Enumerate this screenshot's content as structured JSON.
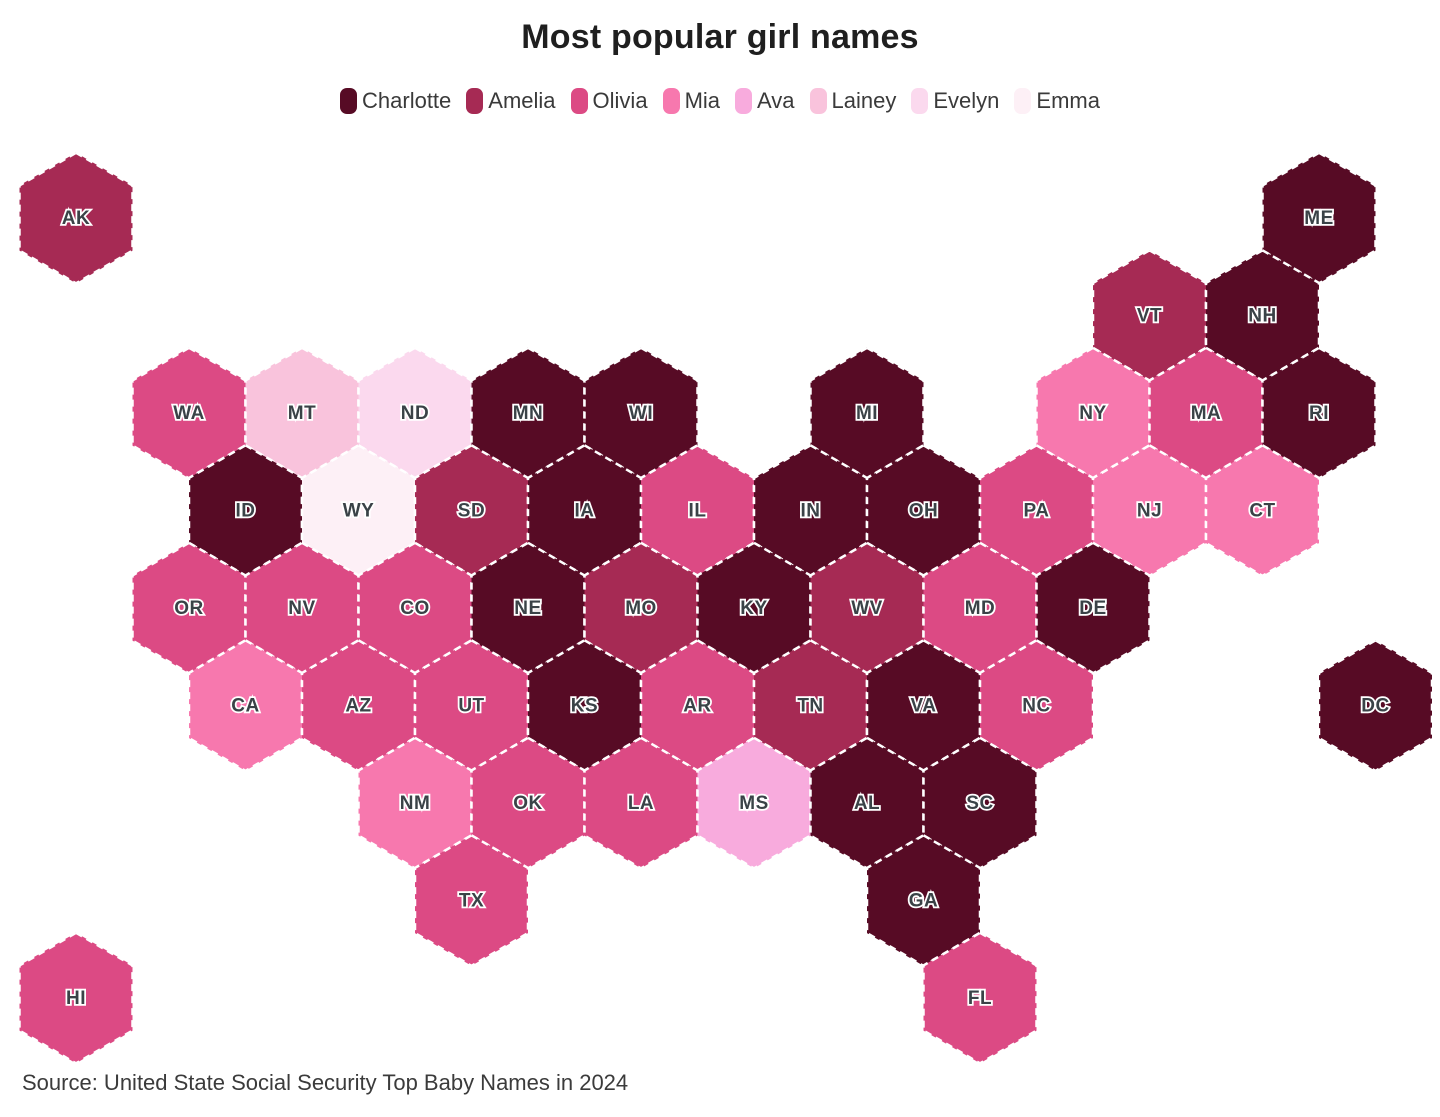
{
  "title": "Most popular girl names",
  "source": "Source: United State Social Security Top Baby Names in 2024",
  "legend": [
    {
      "label": "Charlotte",
      "color": "#570b25"
    },
    {
      "label": "Amelia",
      "color": "#a62a54"
    },
    {
      "label": "Olivia",
      "color": "#dc4a84"
    },
    {
      "label": "Mia",
      "color": "#f778ae"
    },
    {
      "label": "Ava",
      "color": "#f8abdd"
    },
    {
      "label": "Lainey",
      "color": "#f9c3dc"
    },
    {
      "label": "Evelyn",
      "color": "#fbd9ee"
    },
    {
      "label": "Emma",
      "color": "#fdf0f6"
    }
  ],
  "chart_data": {
    "type": "heatmap",
    "subtype": "us-hex-cartogram",
    "title": "Most popular girl names",
    "legend_position": "top",
    "categories": [
      "Charlotte",
      "Amelia",
      "Olivia",
      "Mia",
      "Ava",
      "Lainey",
      "Evelyn",
      "Emma"
    ],
    "colors": {
      "Charlotte": "#570b25",
      "Amelia": "#a62a54",
      "Olivia": "#dc4a84",
      "Mia": "#f778ae",
      "Ava": "#f8abdd",
      "Lainey": "#f9c3dc",
      "Evelyn": "#fbd9ee",
      "Emma": "#fdf0f6"
    },
    "states": [
      {
        "abbr": "AK",
        "value": "Amelia",
        "row": 0,
        "col": 0
      },
      {
        "abbr": "ME",
        "value": "Charlotte",
        "row": 0,
        "col": 11
      },
      {
        "abbr": "VT",
        "value": "Amelia",
        "row": 1,
        "col": 9
      },
      {
        "abbr": "NH",
        "value": "Charlotte",
        "row": 1,
        "col": 10
      },
      {
        "abbr": "WA",
        "value": "Olivia",
        "row": 2,
        "col": 1
      },
      {
        "abbr": "MT",
        "value": "Lainey",
        "row": 2,
        "col": 2
      },
      {
        "abbr": "ND",
        "value": "Evelyn",
        "row": 2,
        "col": 3
      },
      {
        "abbr": "MN",
        "value": "Charlotte",
        "row": 2,
        "col": 4
      },
      {
        "abbr": "WI",
        "value": "Charlotte",
        "row": 2,
        "col": 5
      },
      {
        "abbr": "MI",
        "value": "Charlotte",
        "row": 2,
        "col": 7
      },
      {
        "abbr": "NY",
        "value": "Mia",
        "row": 2,
        "col": 9
      },
      {
        "abbr": "MA",
        "value": "Olivia",
        "row": 2,
        "col": 10
      },
      {
        "abbr": "RI",
        "value": "Charlotte",
        "row": 2,
        "col": 11
      },
      {
        "abbr": "ID",
        "value": "Charlotte",
        "row": 3,
        "col": 1
      },
      {
        "abbr": "WY",
        "value": "Emma",
        "row": 3,
        "col": 2
      },
      {
        "abbr": "SD",
        "value": "Amelia",
        "row": 3,
        "col": 3
      },
      {
        "abbr": "IA",
        "value": "Charlotte",
        "row": 3,
        "col": 4
      },
      {
        "abbr": "IL",
        "value": "Olivia",
        "row": 3,
        "col": 5
      },
      {
        "abbr": "IN",
        "value": "Charlotte",
        "row": 3,
        "col": 6
      },
      {
        "abbr": "OH",
        "value": "Charlotte",
        "row": 3,
        "col": 7
      },
      {
        "abbr": "PA",
        "value": "Olivia",
        "row": 3,
        "col": 8
      },
      {
        "abbr": "NJ",
        "value": "Mia",
        "row": 3,
        "col": 9
      },
      {
        "abbr": "CT",
        "value": "Mia",
        "row": 3,
        "col": 10
      },
      {
        "abbr": "OR",
        "value": "Olivia",
        "row": 4,
        "col": 1
      },
      {
        "abbr": "NV",
        "value": "Olivia",
        "row": 4,
        "col": 2
      },
      {
        "abbr": "CO",
        "value": "Olivia",
        "row": 4,
        "col": 3
      },
      {
        "abbr": "NE",
        "value": "Charlotte",
        "row": 4,
        "col": 4
      },
      {
        "abbr": "MO",
        "value": "Amelia",
        "row": 4,
        "col": 5
      },
      {
        "abbr": "KY",
        "value": "Charlotte",
        "row": 4,
        "col": 6
      },
      {
        "abbr": "WV",
        "value": "Amelia",
        "row": 4,
        "col": 7
      },
      {
        "abbr": "MD",
        "value": "Olivia",
        "row": 4,
        "col": 8
      },
      {
        "abbr": "DE",
        "value": "Charlotte",
        "row": 4,
        "col": 9
      },
      {
        "abbr": "CA",
        "value": "Mia",
        "row": 5,
        "col": 1
      },
      {
        "abbr": "AZ",
        "value": "Olivia",
        "row": 5,
        "col": 2
      },
      {
        "abbr": "UT",
        "value": "Olivia",
        "row": 5,
        "col": 3
      },
      {
        "abbr": "KS",
        "value": "Charlotte",
        "row": 5,
        "col": 4
      },
      {
        "abbr": "AR",
        "value": "Olivia",
        "row": 5,
        "col": 5
      },
      {
        "abbr": "TN",
        "value": "Amelia",
        "row": 5,
        "col": 6
      },
      {
        "abbr": "VA",
        "value": "Charlotte",
        "row": 5,
        "col": 7
      },
      {
        "abbr": "NC",
        "value": "Olivia",
        "row": 5,
        "col": 8
      },
      {
        "abbr": "DC",
        "value": "Charlotte",
        "row": 5,
        "col": 11
      },
      {
        "abbr": "NM",
        "value": "Mia",
        "row": 6,
        "col": 3
      },
      {
        "abbr": "OK",
        "value": "Olivia",
        "row": 6,
        "col": 4
      },
      {
        "abbr": "LA",
        "value": "Olivia",
        "row": 6,
        "col": 5
      },
      {
        "abbr": "MS",
        "value": "Ava",
        "row": 6,
        "col": 6
      },
      {
        "abbr": "AL",
        "value": "Charlotte",
        "row": 6,
        "col": 7
      },
      {
        "abbr": "SC",
        "value": "Charlotte",
        "row": 6,
        "col": 8
      },
      {
        "abbr": "TX",
        "value": "Olivia",
        "row": 7,
        "col": 3
      },
      {
        "abbr": "GA",
        "value": "Charlotte",
        "row": 7,
        "col": 7
      },
      {
        "abbr": "HI",
        "value": "Olivia",
        "row": 8,
        "col": 0
      },
      {
        "abbr": "FL",
        "value": "Olivia",
        "row": 8,
        "col": 8
      }
    ]
  }
}
